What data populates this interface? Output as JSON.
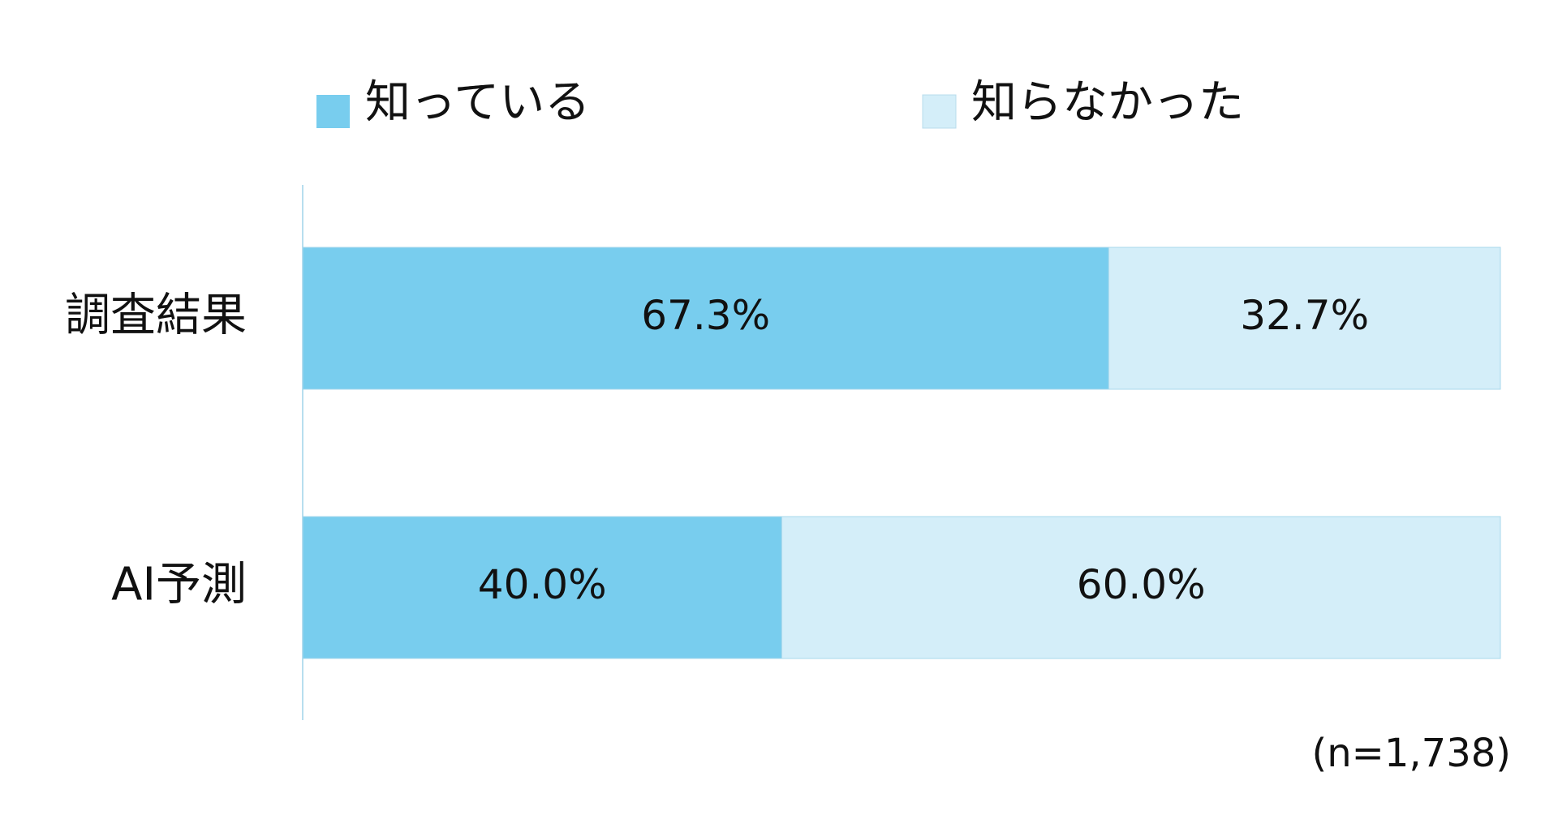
{
  "chart_data": {
    "type": "stacked-bar-horizontal",
    "categories": [
      "調査結果",
      "AI予測"
    ],
    "series": [
      {
        "name": "知っている",
        "color": "#78cdee",
        "values": [
          67.3,
          40.0
        ],
        "value_labels": [
          "67.3%",
          "40.0%"
        ]
      },
      {
        "name": "知らなかった",
        "color": "#d4eef9",
        "values": [
          32.7,
          60.0
        ],
        "value_labels": [
          "32.7%",
          "60.0%"
        ]
      }
    ],
    "xlim": [
      0,
      100
    ],
    "annotation": "(n=1,738)"
  }
}
